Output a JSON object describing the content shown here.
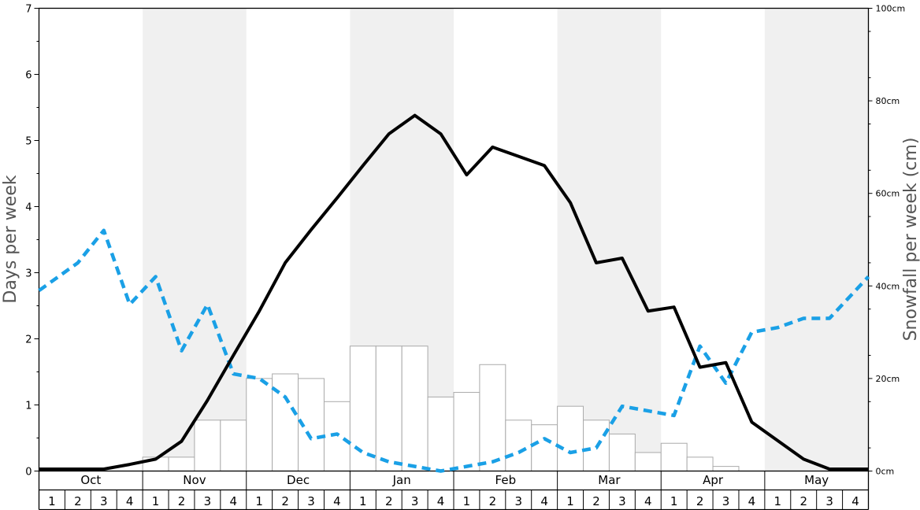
{
  "chart_data": {
    "type": "bar+line",
    "y_left": {
      "label": "Days per week",
      "range": [
        0,
        7
      ],
      "ticks": [
        "0",
        "1",
        "2",
        "3",
        "4",
        "5",
        "6",
        "7"
      ]
    },
    "y_right": {
      "label": "Snowfall per week (cm)",
      "range": [
        0,
        100
      ],
      "ticks": [
        "0cm",
        "20cm",
        "40cm",
        "60cm",
        "80cm",
        "100cm"
      ]
    },
    "months": [
      "Oct",
      "Nov",
      "Dec",
      "Jan",
      "Feb",
      "Mar",
      "Apr",
      "May"
    ],
    "week_labels": [
      "1",
      "2",
      "3",
      "4"
    ],
    "shaded_months": [
      "Nov",
      "Jan",
      "Mar",
      "May"
    ],
    "colors": {
      "shade": "#f0f0f0",
      "bar_stroke": "#aaaaaa",
      "solid_line": "#000000",
      "dashed_line": "#1aa0e6"
    },
    "series": [
      {
        "kind": "bar",
        "axis": "right",
        "values": [
          0,
          0,
          0,
          0,
          3,
          3,
          11,
          11,
          20,
          21,
          20,
          15,
          27,
          27,
          27,
          16,
          17,
          23,
          11,
          10,
          14,
          11,
          8,
          4,
          6,
          3,
          1,
          0,
          0,
          0,
          0,
          0
        ]
      },
      {
        "kind": "line-solid",
        "axis": "left",
        "values": [
          0.03,
          0.03,
          0.03,
          0.1,
          0.18,
          0.45,
          1.07,
          1.75,
          2.42,
          3.15,
          3.65,
          4.13,
          4.62,
          5.1,
          5.38,
          5.1,
          4.48,
          4.9,
          4.76,
          4.62,
          4.06,
          3.15,
          3.22,
          2.42,
          2.48,
          1.57,
          1.64,
          0.74,
          0.46,
          0.18,
          0.03,
          0.03
        ]
      },
      {
        "kind": "line-dashed",
        "axis": "right",
        "values": [
          39,
          45,
          52,
          36,
          42,
          26,
          36,
          21,
          20,
          16,
          7,
          8,
          4,
          2,
          1,
          0,
          1,
          2,
          4,
          7,
          4,
          5,
          14,
          13,
          12,
          27,
          19,
          30,
          31,
          33,
          33,
          42
        ]
      }
    ]
  }
}
